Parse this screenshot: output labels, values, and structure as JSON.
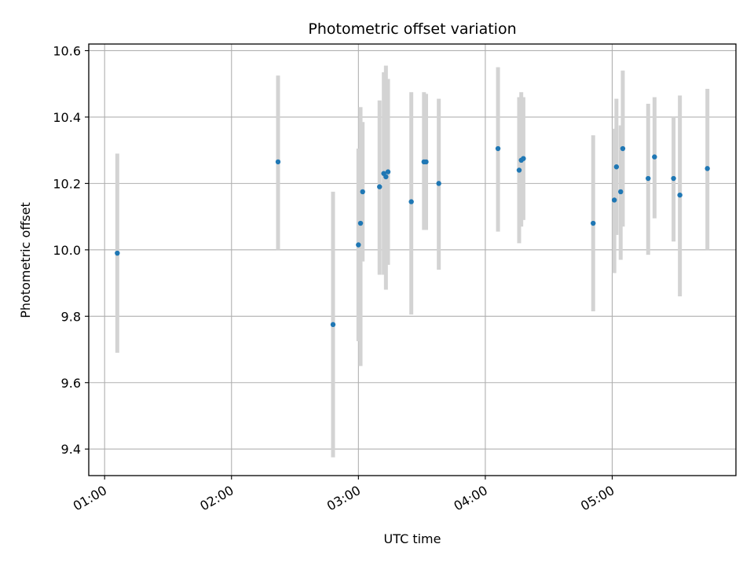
{
  "chart_data": {
    "type": "scatter",
    "title": "Photometric offset variation",
    "xlabel": "UTC time",
    "ylabel": "Photometric offset",
    "x_axis_type": "time",
    "xlim": [
      "00:52:30",
      "05:58:30"
    ],
    "ylim": [
      9.32,
      10.62
    ],
    "x_ticks": [
      "01:00",
      "02:00",
      "03:00",
      "04:00",
      "05:00"
    ],
    "y_ticks": [
      9.4,
      9.6,
      9.8,
      10.0,
      10.2,
      10.4,
      10.6
    ],
    "grid": true,
    "marker_color": "#1f77b4",
    "errorbar_color": "#d3d3d3",
    "points": [
      {
        "t": "01:06",
        "y": 9.99,
        "lo": 9.69,
        "hi": 10.29
      },
      {
        "t": "02:22",
        "y": 10.265,
        "lo": 10.0,
        "hi": 10.525
      },
      {
        "t": "02:48",
        "y": 9.775,
        "lo": 9.375,
        "hi": 10.175
      },
      {
        "t": "03:00",
        "y": 10.015,
        "lo": 9.725,
        "hi": 10.305
      },
      {
        "t": "03:01",
        "y": 10.08,
        "lo": 9.65,
        "hi": 10.43
      },
      {
        "t": "03:02",
        "y": 10.175,
        "lo": 9.965,
        "hi": 10.385
      },
      {
        "t": "03:10",
        "y": 10.19,
        "lo": 9.925,
        "hi": 10.45
      },
      {
        "t": "03:12",
        "y": 10.23,
        "lo": 9.925,
        "hi": 10.535
      },
      {
        "t": "03:13",
        "y": 10.22,
        "lo": 9.88,
        "hi": 10.555
      },
      {
        "t": "03:14",
        "y": 10.235,
        "lo": 9.955,
        "hi": 10.515
      },
      {
        "t": "03:25",
        "y": 10.145,
        "lo": 9.805,
        "hi": 10.475
      },
      {
        "t": "03:31",
        "y": 10.265,
        "lo": 10.06,
        "hi": 10.475
      },
      {
        "t": "03:32",
        "y": 10.265,
        "lo": 10.06,
        "hi": 10.47
      },
      {
        "t": "03:38",
        "y": 10.2,
        "lo": 9.94,
        "hi": 10.455
      },
      {
        "t": "04:06",
        "y": 10.305,
        "lo": 10.055,
        "hi": 10.55
      },
      {
        "t": "04:16",
        "y": 10.24,
        "lo": 10.02,
        "hi": 10.46
      },
      {
        "t": "04:17",
        "y": 10.27,
        "lo": 10.07,
        "hi": 10.475
      },
      {
        "t": "04:18",
        "y": 10.275,
        "lo": 10.09,
        "hi": 10.46
      },
      {
        "t": "04:51",
        "y": 10.08,
        "lo": 9.815,
        "hi": 10.345
      },
      {
        "t": "05:01",
        "y": 10.15,
        "lo": 9.93,
        "hi": 10.365
      },
      {
        "t": "05:02",
        "y": 10.25,
        "lo": 10.045,
        "hi": 10.455
      },
      {
        "t": "05:04",
        "y": 10.175,
        "lo": 9.97,
        "hi": 10.375
      },
      {
        "t": "05:05",
        "y": 10.305,
        "lo": 10.07,
        "hi": 10.54
      },
      {
        "t": "05:17",
        "y": 10.215,
        "lo": 9.985,
        "hi": 10.44
      },
      {
        "t": "05:20",
        "y": 10.28,
        "lo": 10.095,
        "hi": 10.46
      },
      {
        "t": "05:29",
        "y": 10.215,
        "lo": 10.025,
        "hi": 10.4
      },
      {
        "t": "05:32",
        "y": 10.165,
        "lo": 9.86,
        "hi": 10.465
      },
      {
        "t": "05:45",
        "y": 10.245,
        "lo": 10.0,
        "hi": 10.485
      }
    ]
  }
}
